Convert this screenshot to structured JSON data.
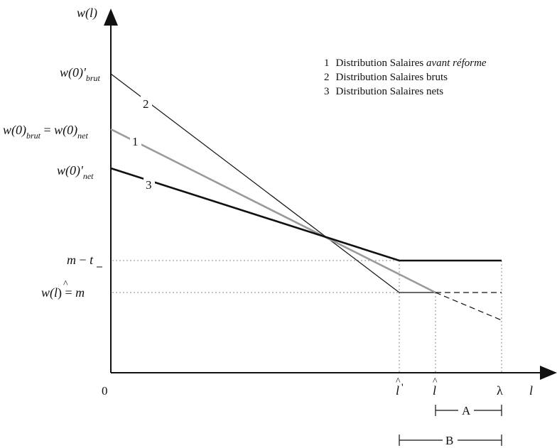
{
  "axes": {
    "y_label": "w(l)",
    "x_label": "l",
    "origin": "0"
  },
  "y_ticks": {
    "w0_prime_brut": {
      "base": "w(0)'",
      "sub": "brut"
    },
    "w0_equal": {
      "base1": "w(0)",
      "sub1": "brut",
      "eq": " = ",
      "base2": "w(0)",
      "sub2": "net"
    },
    "w0_prime_net": {
      "base": "w(0)'",
      "sub": "net"
    },
    "m_minus_t": {
      "m": "m",
      "minus": " − ",
      "t": "t"
    },
    "w_lhat_m": {
      "w": "w(",
      "l": "l",
      "hat": "^",
      "close": ") = ",
      "m": "m"
    }
  },
  "x_ticks": {
    "l_hat_prime": {
      "l": "l",
      "hat": "^",
      "prime": "'"
    },
    "l_hat": {
      "l": "l",
      "hat": "^"
    },
    "lambda": "λ"
  },
  "line_labels": {
    "line1": "1",
    "line2": "2",
    "line3": "3"
  },
  "legend": {
    "items": [
      {
        "num": "1",
        "text": "Distribution Salaires ",
        "italic": "avant réforme"
      },
      {
        "num": "2",
        "text": "Distribution Salaires bruts",
        "italic": ""
      },
      {
        "num": "3",
        "text": "Distribution Salaires nets",
        "italic": ""
      }
    ]
  },
  "brackets": {
    "A": "A",
    "B": "B"
  },
  "colors": {
    "line1": "#9a9a9a",
    "line2": "#111111",
    "line3": "#111111",
    "guides": "#888888"
  }
}
